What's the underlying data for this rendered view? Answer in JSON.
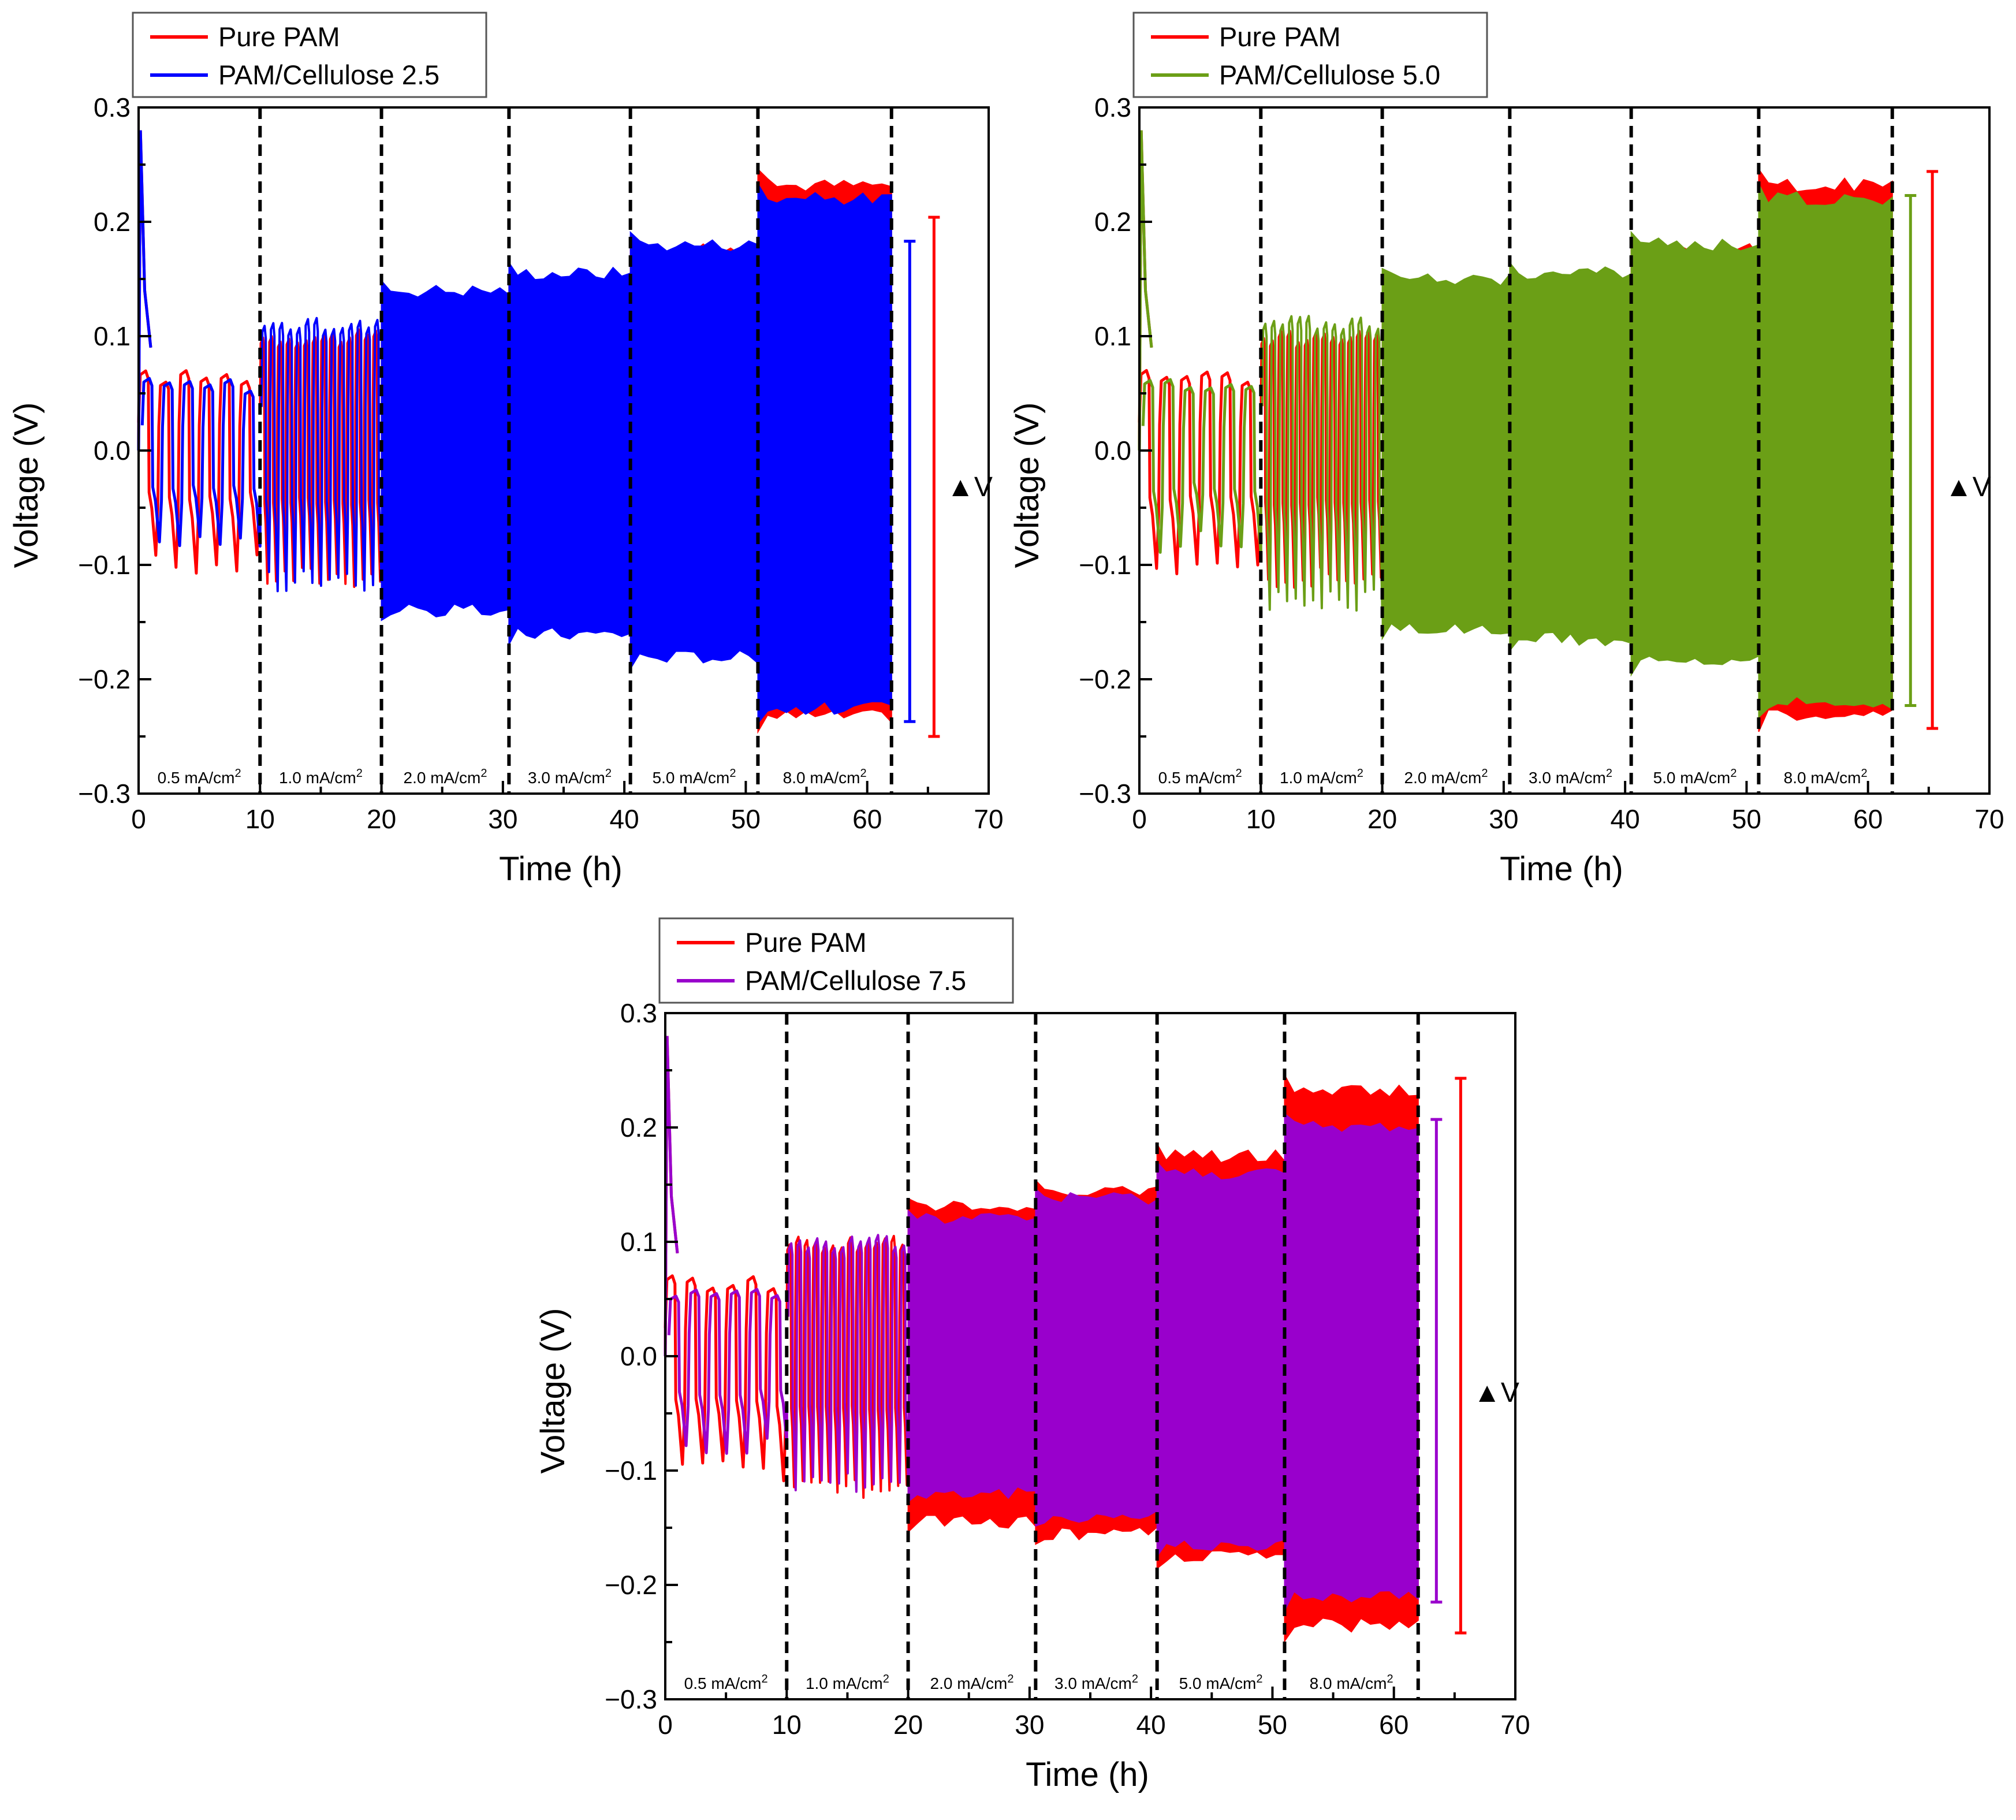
{
  "chart_data": [
    {
      "type": "line",
      "id": "panel-a",
      "xlabel": "Time (h)",
      "ylabel": "Voltage (V)",
      "xlim": [
        0,
        70
      ],
      "ylim": [
        -0.3,
        0.3
      ],
      "xticks": [
        "0",
        "10",
        "20",
        "30",
        "40",
        "50",
        "60",
        "70"
      ],
      "yticks": [
        "−0.3",
        "−0.2",
        "−0.1",
        "0.0",
        "0.1",
        "0.2",
        "0.3"
      ],
      "legend": [
        {
          "label": "Pure PAM",
          "color": "#ff0000"
        },
        {
          "label": "PAM/Cellulose 2.5",
          "color": "#0000ff"
        }
      ],
      "segments": [
        {
          "label": "0.5 mA/cm",
          "sup": "2",
          "x0": 0,
          "x1": 10
        },
        {
          "label": "1.0 mA/cm",
          "sup": "2",
          "x0": 10,
          "x1": 20
        },
        {
          "label": "2.0 mA/cm",
          "sup": "2",
          "x0": 20,
          "x1": 30.5
        },
        {
          "label": "3.0 mA/cm",
          "sup": "2",
          "x0": 30.5,
          "x1": 40.5
        },
        {
          "label": "5.0 mA/cm",
          "sup": "2",
          "x0": 40.5,
          "x1": 51
        },
        {
          "label": "8.0 mA/cm",
          "sup": "2",
          "x0": 51,
          "x1": 62
        }
      ],
      "series": [
        {
          "name": "Pure PAM",
          "color": "#ff0000",
          "amplitude_by_segment": [
            [
              0.065,
              -0.1
            ],
            [
              0.1,
              -0.11
            ],
            [
              0.13,
              -0.13
            ],
            [
              0.145,
              -0.15
            ],
            [
              0.175,
              -0.168
            ],
            [
              0.232,
              -0.232
            ]
          ]
        },
        {
          "name": "PAM/Cellulose 2.5",
          "color": "#0000ff",
          "amplitude_by_segment": [
            [
              0.058,
              -0.08
            ],
            [
              0.11,
              -0.115
            ],
            [
              0.14,
              -0.14
            ],
            [
              0.155,
              -0.16
            ],
            [
              0.18,
              -0.18
            ],
            [
              0.22,
              -0.225
            ]
          ]
        }
      ],
      "delta_v": [
        {
          "color": "#0000ff",
          "x": 63.5,
          "top": 0.183,
          "bottom": -0.237
        },
        {
          "color": "#ff0000",
          "x": 65.5,
          "top": 0.204,
          "bottom": -0.25
        }
      ],
      "delta_v_label": "▲V"
    },
    {
      "type": "line",
      "id": "panel-b",
      "xlabel": "Time (h)",
      "ylabel": "Voltage (V)",
      "xlim": [
        0,
        70
      ],
      "ylim": [
        -0.3,
        0.3
      ],
      "xticks": [
        "0",
        "10",
        "20",
        "30",
        "40",
        "50",
        "60",
        "70"
      ],
      "yticks": [
        "−0.3",
        "−0.2",
        "−0.1",
        "0.0",
        "0.1",
        "0.2",
        "0.3"
      ],
      "legend": [
        {
          "label": "Pure PAM",
          "color": "#ff0000"
        },
        {
          "label": "PAM/Cellulose 5.0",
          "color": "#6b9f16"
        }
      ],
      "segments": [
        {
          "label": "0.5 mA/cm",
          "sup": "2",
          "x0": 0,
          "x1": 10
        },
        {
          "label": "1.0 mA/cm",
          "sup": "2",
          "x0": 10,
          "x1": 20
        },
        {
          "label": "2.0 mA/cm",
          "sup": "2",
          "x0": 20,
          "x1": 30.5
        },
        {
          "label": "3.0 mA/cm",
          "sup": "2",
          "x0": 30.5,
          "x1": 40.5
        },
        {
          "label": "5.0 mA/cm",
          "sup": "2",
          "x0": 40.5,
          "x1": 51
        },
        {
          "label": "8.0 mA/cm",
          "sup": "2",
          "x0": 51,
          "x1": 62
        }
      ],
      "series": [
        {
          "name": "Pure PAM",
          "color": "#ff0000",
          "amplitude_by_segment": [
            [
              0.065,
              -0.1
            ],
            [
              0.1,
              -0.11
            ],
            [
              0.13,
              -0.13
            ],
            [
              0.145,
              -0.15
            ],
            [
              0.175,
              -0.168
            ],
            [
              0.232,
              -0.232
            ]
          ]
        },
        {
          "name": "PAM/Cellulose 5.0",
          "color": "#6b9f16",
          "amplitude_by_segment": [
            [
              0.06,
              -0.08
            ],
            [
              0.112,
              -0.13
            ],
            [
              0.15,
              -0.155
            ],
            [
              0.155,
              -0.165
            ],
            [
              0.18,
              -0.185
            ],
            [
              0.22,
              -0.22
            ]
          ]
        }
      ],
      "delta_v": [
        {
          "color": "#6b9f16",
          "x": 63.5,
          "top": 0.223,
          "bottom": -0.223
        },
        {
          "color": "#ff0000",
          "x": 65.3,
          "top": 0.244,
          "bottom": -0.243
        }
      ],
      "delta_v_label": "▲V"
    },
    {
      "type": "line",
      "id": "panel-c",
      "xlabel": "Time (h)",
      "ylabel": "Voltage (V)",
      "xlim": [
        0,
        70
      ],
      "ylim": [
        -0.3,
        0.3
      ],
      "xticks": [
        "0",
        "10",
        "20",
        "30",
        "40",
        "50",
        "60",
        "70"
      ],
      "yticks": [
        "−0.3",
        "−0.2",
        "−0.1",
        "0.0",
        "0.1",
        "0.2",
        "0.3"
      ],
      "legend": [
        {
          "label": "Pure PAM",
          "color": "#ff0000"
        },
        {
          "label": "PAM/Cellulose 7.5",
          "color": "#9900cc"
        }
      ],
      "segments": [
        {
          "label": "0.5 mA/cm",
          "sup": "2",
          "x0": 0,
          "x1": 10
        },
        {
          "label": "1.0 mA/cm",
          "sup": "2",
          "x0": 10,
          "x1": 20
        },
        {
          "label": "2.0 mA/cm",
          "sup": "2",
          "x0": 20,
          "x1": 30.5
        },
        {
          "label": "3.0 mA/cm",
          "sup": "2",
          "x0": 30.5,
          "x1": 40.5
        },
        {
          "label": "5.0 mA/cm",
          "sup": "2",
          "x0": 40.5,
          "x1": 51
        },
        {
          "label": "8.0 mA/cm",
          "sup": "2",
          "x0": 51,
          "x1": 62
        }
      ],
      "series": [
        {
          "name": "Pure PAM",
          "color": "#ff0000",
          "amplitude_by_segment": [
            [
              0.065,
              -0.1
            ],
            [
              0.1,
              -0.115
            ],
            [
              0.13,
              -0.145
            ],
            [
              0.145,
              -0.155
            ],
            [
              0.175,
              -0.175
            ],
            [
              0.232,
              -0.235
            ]
          ]
        },
        {
          "name": "PAM/Cellulose 7.5",
          "color": "#9900cc",
          "amplitude_by_segment": [
            [
              0.055,
              -0.08
            ],
            [
              0.1,
              -0.11
            ],
            [
              0.12,
              -0.12
            ],
            [
              0.138,
              -0.14
            ],
            [
              0.16,
              -0.165
            ],
            [
              0.2,
              -0.21
            ]
          ]
        }
      ],
      "delta_v": [
        {
          "color": "#9900cc",
          "x": 63.5,
          "top": 0.207,
          "bottom": -0.215
        },
        {
          "color": "#ff0000",
          "x": 65.5,
          "top": 0.243,
          "bottom": -0.242
        }
      ],
      "delta_v_label": "▲V"
    }
  ]
}
